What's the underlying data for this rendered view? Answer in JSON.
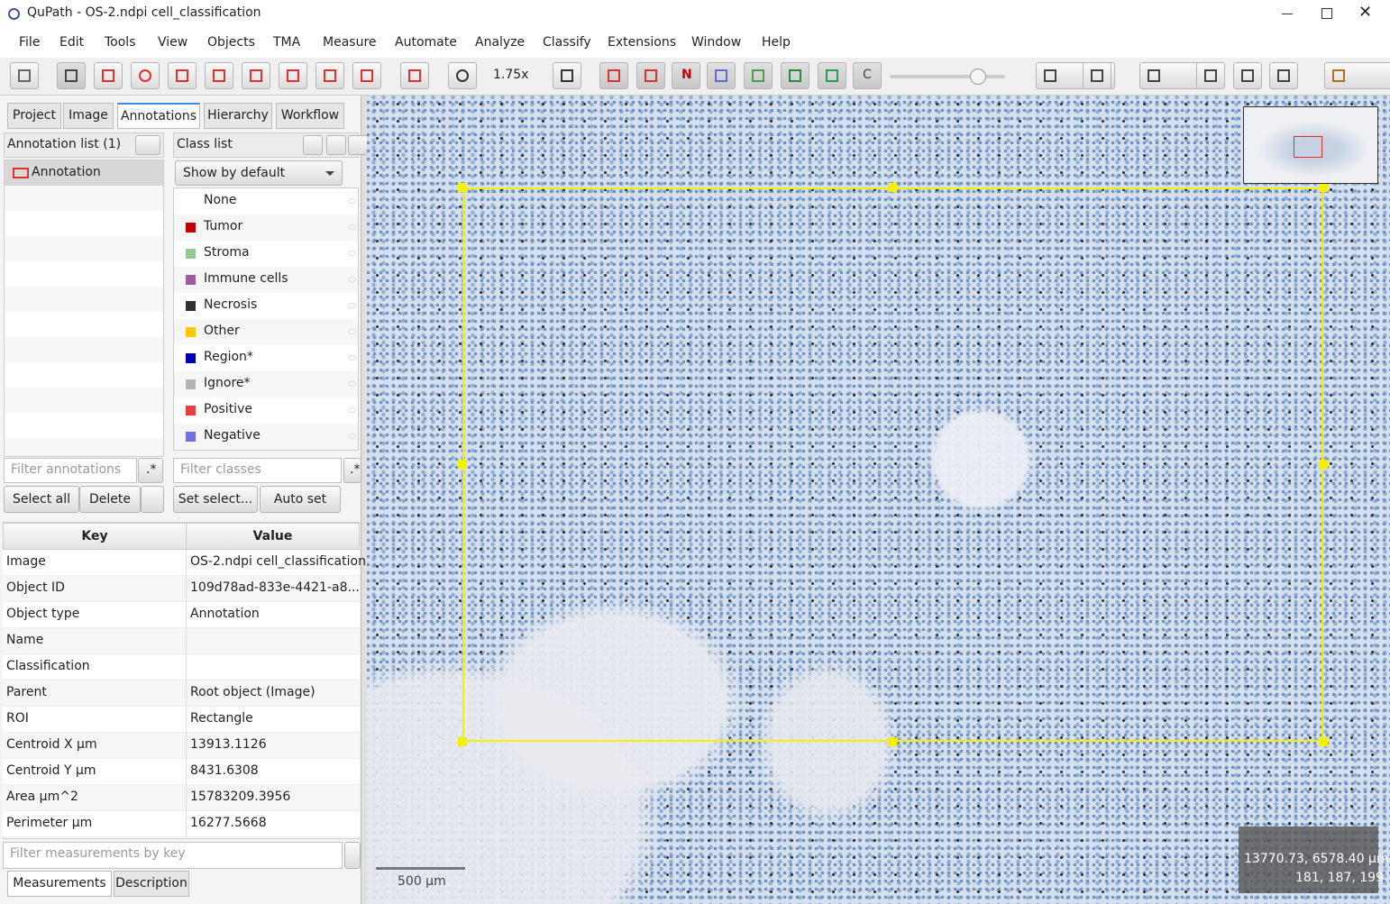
{
  "window": {
    "title": "QuPath - OS-2.ndpi cell_classification"
  },
  "menu": [
    "File",
    "Edit",
    "Tools",
    "View",
    "Objects",
    "TMA",
    "Measure",
    "Automate",
    "Analyze",
    "Classify",
    "Extensions",
    "Window",
    "Help"
  ],
  "toolbar": {
    "zoom": "1.75x",
    "labels": [
      "N",
      "C"
    ]
  },
  "tabs": [
    "Project",
    "Image",
    "Annotations",
    "Hierarchy",
    "Workflow"
  ],
  "annotations": {
    "title": "Annotation list (1)",
    "items": [
      {
        "name": "Annotation",
        "color": "#e03030"
      }
    ],
    "filter": "Filter annotations",
    "regex": ".*",
    "buttons": [
      "Select all",
      "Delete"
    ]
  },
  "classes": {
    "title": "Class list",
    "visibility": "Show by default",
    "items": [
      {
        "name": "None"
      },
      {
        "name": "Tumor",
        "color": "#c00000"
      },
      {
        "name": "Stroma",
        "color": "#96c896"
      },
      {
        "name": "Immune cells",
        "color": "#a05aa0"
      },
      {
        "name": "Necrosis",
        "color": "#323232"
      },
      {
        "name": "Other",
        "color": "#ffc800"
      },
      {
        "name": "Region*",
        "color": "#0000b4"
      },
      {
        "name": "Ignore*",
        "color": "#b4b4b4"
      },
      {
        "name": "Positive",
        "color": "#e84040"
      },
      {
        "name": "Negative",
        "color": "#7070e0"
      }
    ],
    "filter": "Filter classes",
    "regex": ".*",
    "buttons": [
      "Set select...",
      "Auto set"
    ]
  },
  "measurements": {
    "headers": [
      "Key",
      "Value"
    ],
    "rows": [
      {
        "key": "Image",
        "value": "OS-2.ndpi cell_classification"
      },
      {
        "key": "Object ID",
        "value": "109d78ad-833e-4421-a8..."
      },
      {
        "key": "Object type",
        "value": "Annotation"
      },
      {
        "key": "Name"
      },
      {
        "key": "Classification"
      },
      {
        "key": "Parent",
        "value": "Root object (Image)"
      },
      {
        "key": "ROI",
        "value": "Rectangle"
      },
      {
        "key": "Centroid X µm",
        "value": "13913.1126"
      },
      {
        "key": "Centroid Y µm",
        "value": "8431.6308"
      },
      {
        "key": "Area µm^2",
        "value": "15783209.3956"
      },
      {
        "key": "Perimeter µm",
        "value": "16277.5668"
      }
    ],
    "filter": "Filter measurements by key",
    "tabs": [
      "Measurements",
      "Description"
    ]
  },
  "viewer": {
    "scale_bar": "500 µm",
    "cursor": "13770.73, 6578.40 µm",
    "rgb": "181, 187, 199"
  }
}
